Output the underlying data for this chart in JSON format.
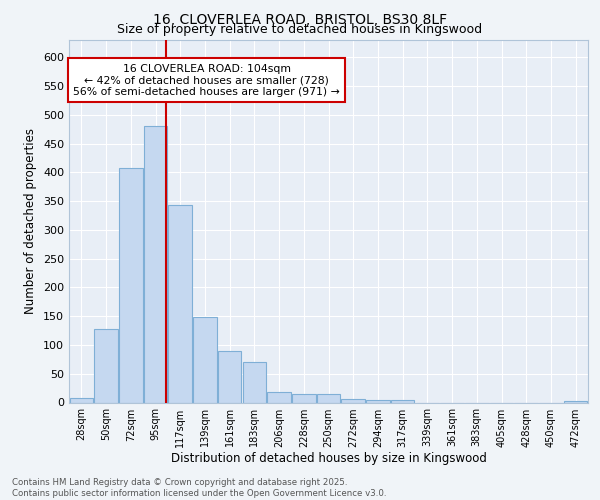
{
  "title_line1": "16, CLOVERLEA ROAD, BRISTOL, BS30 8LF",
  "title_line2": "Size of property relative to detached houses in Kingswood",
  "xlabel": "Distribution of detached houses by size in Kingswood",
  "ylabel": "Number of detached properties",
  "categories": [
    "28sqm",
    "50sqm",
    "72sqm",
    "95sqm",
    "117sqm",
    "139sqm",
    "161sqm",
    "183sqm",
    "206sqm",
    "228sqm",
    "250sqm",
    "272sqm",
    "294sqm",
    "317sqm",
    "339sqm",
    "361sqm",
    "383sqm",
    "405sqm",
    "428sqm",
    "450sqm",
    "472sqm"
  ],
  "values": [
    8,
    128,
    408,
    480,
    343,
    148,
    90,
    70,
    18,
    14,
    14,
    6,
    4,
    4,
    0,
    0,
    0,
    0,
    0,
    0,
    2
  ],
  "bar_color": "#c5d8f0",
  "bar_edge_color": "#7fafd6",
  "background_color": "#f0f4f8",
  "plot_bg_color": "#e8eef6",
  "grid_color": "#ffffff",
  "annotation_text": "16 CLOVERLEA ROAD: 104sqm\n← 42% of detached houses are smaller (728)\n56% of semi-detached houses are larger (971) →",
  "annotation_box_color": "#ffffff",
  "annotation_box_edge": "#cc0000",
  "vline_color": "#cc0000",
  "vline_pos": 3.41,
  "ylim": [
    0,
    630
  ],
  "yticks": [
    0,
    50,
    100,
    150,
    200,
    250,
    300,
    350,
    400,
    450,
    500,
    550,
    600
  ],
  "footer_text": "Contains HM Land Registry data © Crown copyright and database right 2025.\nContains public sector information licensed under the Open Government Licence v3.0."
}
